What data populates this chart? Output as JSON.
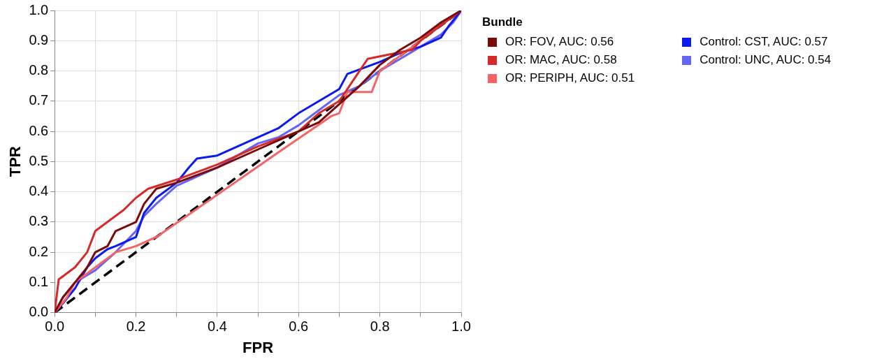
{
  "chart_data": {
    "type": "line",
    "xlabel": "FPR",
    "ylabel": "TPR",
    "legend_title": "Bundle",
    "legend": "right",
    "grid": true,
    "marker": "none",
    "xlim": [
      0,
      1
    ],
    "ylim": [
      0,
      1
    ],
    "xticks": [
      {
        "value": 0,
        "label": "0.0"
      },
      {
        "value": 0.1,
        "label": null
      },
      {
        "value": 0.2,
        "label": "0.2"
      },
      {
        "value": 0.3,
        "label": null
      },
      {
        "value": 0.4,
        "label": "0.4"
      },
      {
        "value": 0.5,
        "label": null
      },
      {
        "value": 0.6,
        "label": "0.6"
      },
      {
        "value": 0.7,
        "label": null
      },
      {
        "value": 0.8,
        "label": "0.8"
      },
      {
        "value": 0.9,
        "label": null
      },
      {
        "value": 1,
        "label": "1.0"
      }
    ],
    "yticks": [
      {
        "value": 0,
        "label": "0.0"
      },
      {
        "value": 0.1,
        "label": "0.1"
      },
      {
        "value": 0.2,
        "label": "0.2"
      },
      {
        "value": 0.3,
        "label": "0.3"
      },
      {
        "value": 0.4,
        "label": "0.4"
      },
      {
        "value": 0.5,
        "label": "0.5"
      },
      {
        "value": 0.6,
        "label": "0.6"
      },
      {
        "value": 0.7,
        "label": "0.7"
      },
      {
        "value": 0.8,
        "label": "0.8"
      },
      {
        "value": 0.9,
        "label": "0.9"
      },
      {
        "value": 1,
        "label": "1.0"
      }
    ],
    "series": [
      {
        "name": "OR: FOV, AUC: 0.56",
        "color": "#7b0a0a",
        "x": [
          0,
          0.02,
          0.05,
          0.08,
          0.1,
          0.13,
          0.15,
          0.2,
          0.22,
          0.25,
          0.3,
          0.4,
          0.5,
          0.6,
          0.65,
          0.7,
          0.75,
          0.8,
          0.85,
          0.9,
          0.95,
          1
        ],
        "values": [
          0,
          0.05,
          0.1,
          0.15,
          0.2,
          0.22,
          0.27,
          0.3,
          0.36,
          0.41,
          0.43,
          0.48,
          0.54,
          0.6,
          0.63,
          0.69,
          0.75,
          0.82,
          0.87,
          0.91,
          0.96,
          1
        ]
      },
      {
        "name": "OR: MAC, AUC: 0.58",
        "color": "#d42a2a",
        "x": [
          0,
          0.01,
          0.02,
          0.05,
          0.08,
          0.1,
          0.13,
          0.17,
          0.2,
          0.23,
          0.3,
          0.4,
          0.5,
          0.6,
          0.65,
          0.7,
          0.77,
          0.88,
          0.9,
          0.95,
          1
        ],
        "values": [
          0,
          0.11,
          0.12,
          0.15,
          0.2,
          0.27,
          0.3,
          0.34,
          0.38,
          0.41,
          0.44,
          0.49,
          0.55,
          0.6,
          0.66,
          0.7,
          0.84,
          0.87,
          0.9,
          0.95,
          1
        ]
      },
      {
        "name": "OR: PERIPH, AUC: 0.51",
        "color": "#f56464",
        "x": [
          0,
          0.03,
          0.05,
          0.1,
          0.15,
          0.2,
          0.25,
          0.4,
          0.55,
          0.68,
          0.7,
          0.72,
          0.78,
          0.8,
          0.85,
          0.9,
          0.95,
          1
        ],
        "values": [
          0,
          0.05,
          0.1,
          0.15,
          0.2,
          0.22,
          0.25,
          0.39,
          0.53,
          0.65,
          0.66,
          0.73,
          0.73,
          0.8,
          0.85,
          0.9,
          0.96,
          1
        ]
      },
      {
        "name": "Control: CST, AUC: 0.57",
        "color": "#0a1af0",
        "x": [
          0,
          0.02,
          0.05,
          0.08,
          0.1,
          0.13,
          0.15,
          0.2,
          0.22,
          0.25,
          0.3,
          0.33,
          0.35,
          0.4,
          0.45,
          0.5,
          0.55,
          0.6,
          0.65,
          0.7,
          0.72,
          0.8,
          0.85,
          0.9,
          0.95,
          0.97,
          1
        ],
        "values": [
          0,
          0.03,
          0.08,
          0.15,
          0.18,
          0.21,
          0.22,
          0.25,
          0.33,
          0.38,
          0.43,
          0.48,
          0.51,
          0.52,
          0.55,
          0.58,
          0.61,
          0.66,
          0.7,
          0.74,
          0.79,
          0.83,
          0.86,
          0.88,
          0.91,
          0.95,
          1
        ]
      },
      {
        "name": "Control: UNC, AUC: 0.54",
        "color": "#6464f5",
        "x": [
          0,
          0.02,
          0.05,
          0.1,
          0.15,
          0.2,
          0.22,
          0.25,
          0.3,
          0.35,
          0.4,
          0.45,
          0.5,
          0.55,
          0.6,
          0.65,
          0.7,
          0.75,
          0.8,
          0.85,
          0.9,
          0.95,
          0.98,
          1
        ],
        "values": [
          0,
          0.05,
          0.1,
          0.14,
          0.2,
          0.27,
          0.32,
          0.36,
          0.42,
          0.45,
          0.48,
          0.52,
          0.56,
          0.58,
          0.62,
          0.67,
          0.72,
          0.75,
          0.8,
          0.84,
          0.88,
          0.92,
          0.96,
          1
        ]
      },
      {
        "color": "#000000",
        "line_style": "dashed",
        "x": [
          0,
          1
        ],
        "values": [
          0,
          1
        ]
      }
    ]
  }
}
